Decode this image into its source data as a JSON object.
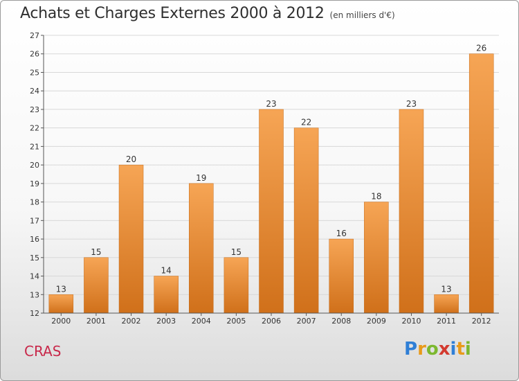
{
  "header": {
    "title": "Achats et Charges Externes 2000 à 2012",
    "unit": "(en milliers d'€)"
  },
  "footer": {
    "city": "CRAS",
    "logo_text": "Proxiti",
    "logo_letters": [
      "P",
      "r",
      "o",
      "x",
      "i",
      "t",
      "i"
    ],
    "logo_colors": [
      "#2f7fd6",
      "#e89a1a",
      "#7cb82f",
      "#d33a2f",
      "#2f7fd6",
      "#e89a1a",
      "#7cb82f"
    ]
  },
  "chart_data": {
    "type": "bar",
    "title": "Achats et Charges Externes 2000 à 2012",
    "subtitle": "(en milliers d'€)",
    "categories": [
      "2000",
      "2001",
      "2002",
      "2003",
      "2004",
      "2005",
      "2006",
      "2007",
      "2008",
      "2009",
      "2010",
      "2011",
      "2012"
    ],
    "values": [
      13,
      15,
      20,
      14,
      19,
      15,
      23,
      22,
      16,
      18,
      23,
      13,
      26
    ],
    "ylim": [
      12,
      27
    ],
    "yticks": [
      12,
      13,
      14,
      15,
      16,
      17,
      18,
      19,
      20,
      21,
      22,
      23,
      24,
      25,
      26,
      27
    ],
    "grid": true,
    "data_labels": true,
    "colors": {
      "bar_top": "#f6a555",
      "bar_bottom": "#d0701a",
      "axis": "#555555",
      "grid": "#d8d8d8"
    }
  }
}
